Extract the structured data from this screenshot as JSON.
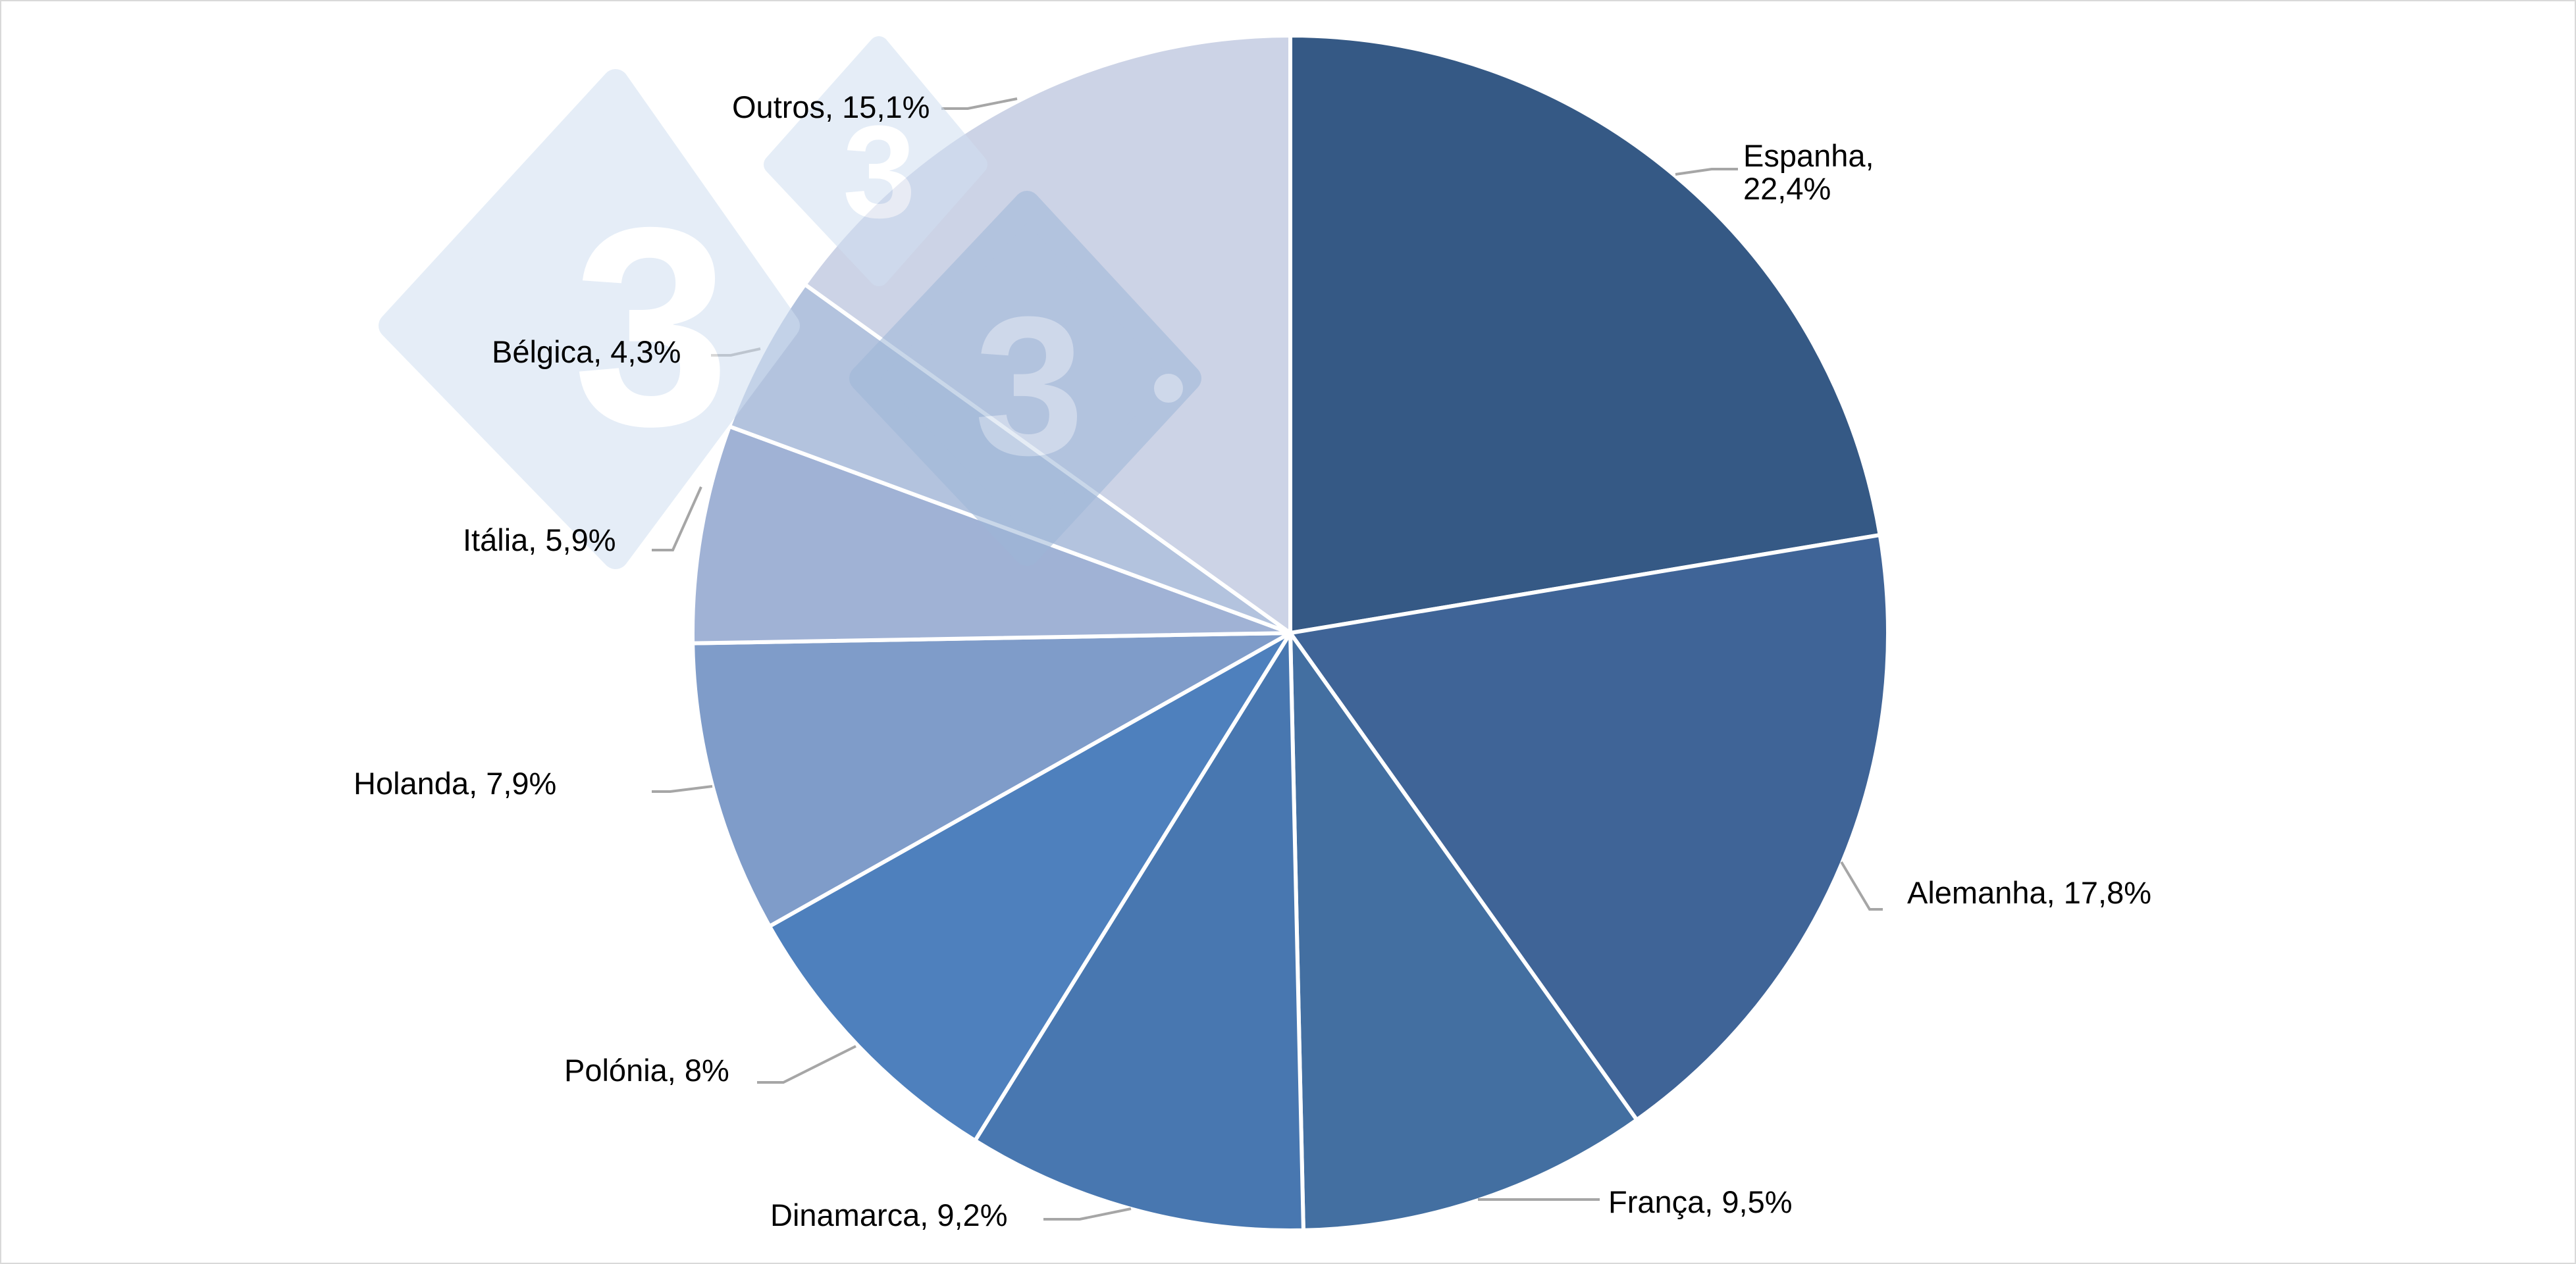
{
  "chart_data": {
    "type": "pie",
    "title": "",
    "start_angle_deg": 0,
    "direction": "clockwise",
    "categories": [
      "Espanha",
      "Alemanha",
      "França",
      "Dinamarca",
      "Polónia",
      "Holanda",
      "Itália",
      "Bélgica",
      "Outros"
    ],
    "values": [
      22.4,
      17.8,
      9.5,
      9.2,
      8.0,
      7.9,
      5.9,
      4.3,
      15.1
    ],
    "value_labels": [
      "22,4%",
      "17,8%",
      "9,5%",
      "9,2%",
      "8%",
      "7,9%",
      "5,9%",
      "4,3%",
      "15,1%"
    ],
    "colors": [
      "#355985",
      "#3f6497",
      "#436fa1",
      "#4877b0",
      "#4e80bd",
      "#7f9cc9",
      "#a0b2d5",
      "#b3c3de",
      "#ccd3e6"
    ],
    "legend": "none",
    "data_labels": "category, percentage"
  },
  "labels": [
    {
      "text": "Espanha,",
      "text2": "22,4%"
    },
    {
      "text": "Alemanha, 17,8%"
    },
    {
      "text": "França, 9,5%"
    },
    {
      "text": "Dinamarca, 9,2%"
    },
    {
      "text": "Polónia, 8%"
    },
    {
      "text": "Holanda, 7,9%"
    },
    {
      "text": "Itália, 5,9%"
    },
    {
      "text": "Bélgica, 4,3%"
    },
    {
      "text": "Outros, 15,1%"
    }
  ],
  "watermark": {
    "glyph": "3",
    "color": "#dce8f5"
  }
}
